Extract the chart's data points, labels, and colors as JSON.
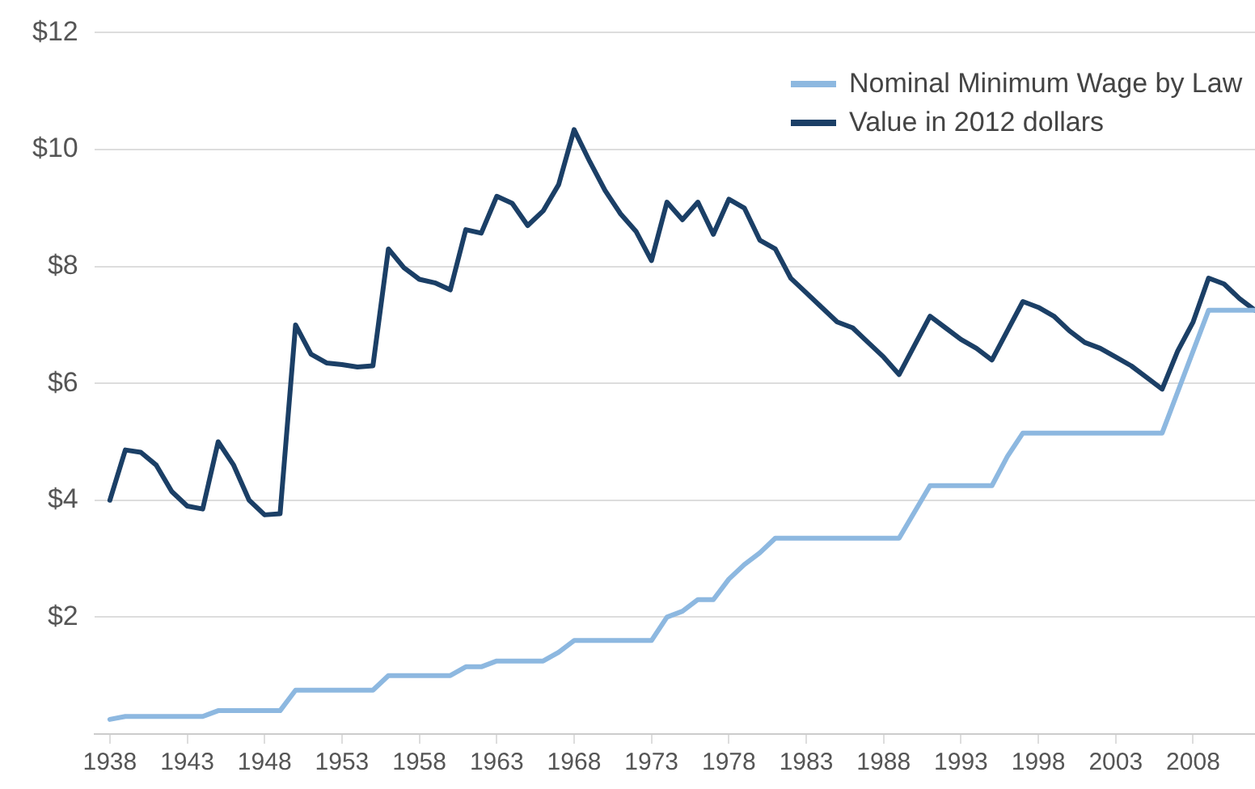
{
  "chart_data": {
    "type": "line",
    "x": [
      1938,
      1939,
      1940,
      1941,
      1942,
      1943,
      1944,
      1945,
      1946,
      1947,
      1948,
      1949,
      1950,
      1951,
      1952,
      1953,
      1954,
      1955,
      1956,
      1957,
      1958,
      1959,
      1960,
      1961,
      1962,
      1963,
      1964,
      1965,
      1966,
      1967,
      1968,
      1969,
      1970,
      1971,
      1972,
      1973,
      1974,
      1975,
      1976,
      1977,
      1978,
      1979,
      1980,
      1981,
      1982,
      1983,
      1984,
      1985,
      1986,
      1987,
      1988,
      1989,
      1990,
      1991,
      1992,
      1993,
      1994,
      1995,
      1996,
      1997,
      1998,
      1999,
      2000,
      2001,
      2002,
      2003,
      2004,
      2005,
      2006,
      2007,
      2008,
      2009,
      2010,
      2011,
      2012
    ],
    "series": [
      {
        "name": "Nominal Minimum Wage by Law",
        "color": "#8db8e0",
        "values": [
          0.25,
          0.3,
          0.3,
          0.3,
          0.3,
          0.3,
          0.3,
          0.4,
          0.4,
          0.4,
          0.4,
          0.4,
          0.75,
          0.75,
          0.75,
          0.75,
          0.75,
          0.75,
          1.0,
          1.0,
          1.0,
          1.0,
          1.0,
          1.15,
          1.15,
          1.25,
          1.25,
          1.25,
          1.25,
          1.4,
          1.6,
          1.6,
          1.6,
          1.6,
          1.6,
          1.6,
          2.0,
          2.1,
          2.3,
          2.3,
          2.65,
          2.9,
          3.1,
          3.35,
          3.35,
          3.35,
          3.35,
          3.35,
          3.35,
          3.35,
          3.35,
          3.35,
          3.8,
          4.25,
          4.25,
          4.25,
          4.25,
          4.25,
          4.75,
          5.15,
          5.15,
          5.15,
          5.15,
          5.15,
          5.15,
          5.15,
          5.15,
          5.15,
          5.15,
          5.85,
          6.55,
          7.25,
          7.25,
          7.25,
          7.25
        ]
      },
      {
        "name": "Value in 2012 dollars",
        "color": "#1b3f66",
        "values": [
          4.0,
          4.86,
          4.82,
          4.6,
          4.15,
          3.9,
          3.85,
          5.0,
          4.6,
          4.0,
          3.75,
          3.77,
          7.0,
          6.5,
          6.35,
          6.32,
          6.28,
          6.3,
          8.3,
          7.98,
          7.78,
          7.72,
          7.6,
          8.63,
          8.57,
          9.2,
          9.08,
          8.7,
          8.95,
          9.4,
          10.34,
          9.8,
          9.3,
          8.9,
          8.6,
          8.1,
          9.1,
          8.8,
          9.1,
          8.55,
          9.15,
          9.0,
          8.45,
          8.3,
          7.8,
          7.55,
          7.3,
          7.05,
          6.95,
          6.7,
          6.45,
          6.15,
          6.65,
          7.15,
          6.95,
          6.75,
          6.6,
          6.4,
          6.9,
          7.4,
          7.3,
          7.15,
          6.9,
          6.7,
          6.6,
          6.45,
          6.3,
          6.1,
          5.9,
          6.55,
          7.05,
          7.8,
          7.7,
          7.45,
          7.25
        ]
      }
    ],
    "xlim": [
      1937,
      2012
    ],
    "xticks": [
      1938,
      1943,
      1948,
      1953,
      1958,
      1963,
      1968,
      1973,
      1978,
      1983,
      1988,
      1993,
      1998,
      2003,
      2008
    ],
    "ylim": [
      0,
      12
    ],
    "yticks": [
      {
        "value": 2,
        "label": "$2"
      },
      {
        "value": 4,
        "label": "$4"
      },
      {
        "value": 6,
        "label": "$6"
      },
      {
        "value": 8,
        "label": "$8"
      },
      {
        "value": 10,
        "label": "$10"
      },
      {
        "value": 12,
        "label": "$12"
      }
    ],
    "grid": "y",
    "legend": "top right",
    "marker": "none",
    "line_style": "solid"
  }
}
